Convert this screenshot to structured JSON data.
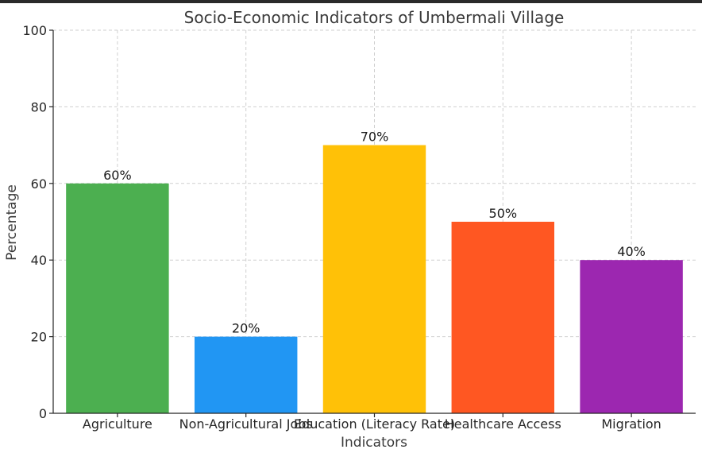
{
  "chart_data": {
    "type": "bar",
    "title": "Socio-Economic Indicators of Umbermali Village",
    "xlabel": "Indicators",
    "ylabel": "Percentage",
    "ylim": [
      0,
      100
    ],
    "yticks": [
      0,
      20,
      40,
      60,
      80,
      100
    ],
    "grid": true,
    "categories": [
      "Agriculture",
      "Non-Agricultural Jobs",
      "Education (Literacy Rate)",
      "Healthcare Access",
      "Migration"
    ],
    "values": [
      60,
      20,
      70,
      50,
      40
    ],
    "data_labels": [
      "60%",
      "20%",
      "70%",
      "50%",
      "40%"
    ],
    "colors": [
      "#4caf50",
      "#2196f3",
      "#ffc107",
      "#ff5722",
      "#9c27b0"
    ]
  }
}
